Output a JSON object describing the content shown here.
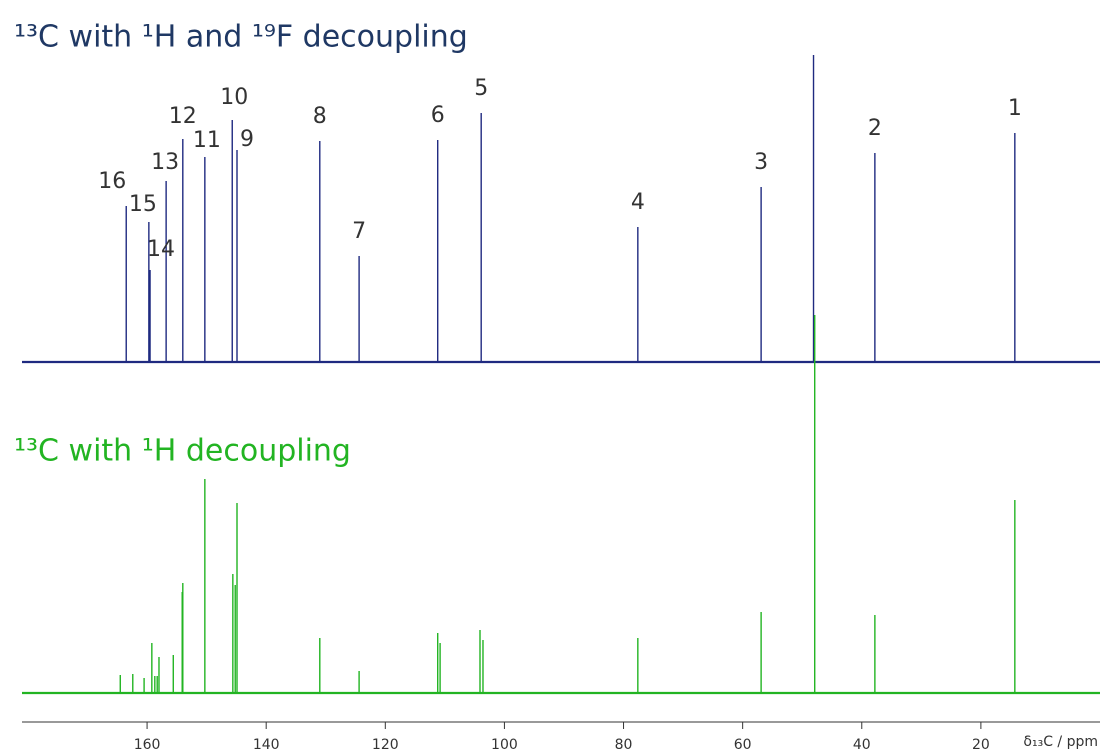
{
  "chart_data": {
    "type": "stick",
    "xlabel": "δ₁₃C / ppm",
    "xlim": [
      181,
      0
    ],
    "xticks": [
      160,
      140,
      120,
      100,
      80,
      60,
      40,
      20
    ],
    "series": [
      {
        "name": "¹³C with ¹H and ¹⁹F decoupling",
        "color": "#1f2a80",
        "x": [
          14.3,
          37.8,
          56.9,
          77.6,
          48.1,
          103.9,
          111.2,
          124.4,
          131.0,
          144.9,
          145.7,
          150.3,
          154.0,
          156.8,
          159.5,
          159.7,
          163.5
        ],
        "values": [
          229,
          209,
          175,
          135,
          310,
          249,
          222,
          106,
          221,
          212,
          242,
          205,
          223,
          181,
          92,
          140,
          156
        ],
        "peak_labels": [
          "1",
          "2",
          "3",
          "4",
          null,
          "5",
          "6",
          "7",
          "8",
          "9",
          "10",
          "11",
          "12",
          "13",
          "14",
          "15",
          "16"
        ]
      },
      {
        "name": "¹³C with ¹H decoupling",
        "color": "#22b422",
        "x": [
          14.3,
          37.8,
          56.9,
          77.6,
          47.9,
          104.1,
          103.6,
          111.2,
          110.8,
          124.4,
          131.0,
          144.9,
          145.2,
          145.6,
          150.3,
          154.0,
          154.1,
          155.6,
          158.0,
          158.3,
          158.7,
          159.2,
          160.5,
          162.4,
          164.5
        ],
        "values": [
          193,
          78,
          81,
          55,
          378,
          63,
          53,
          60,
          50,
          22,
          55,
          190,
          108,
          119,
          214,
          110,
          101,
          38,
          36,
          17,
          17,
          50,
          15,
          19,
          18
        ]
      }
    ]
  }
}
